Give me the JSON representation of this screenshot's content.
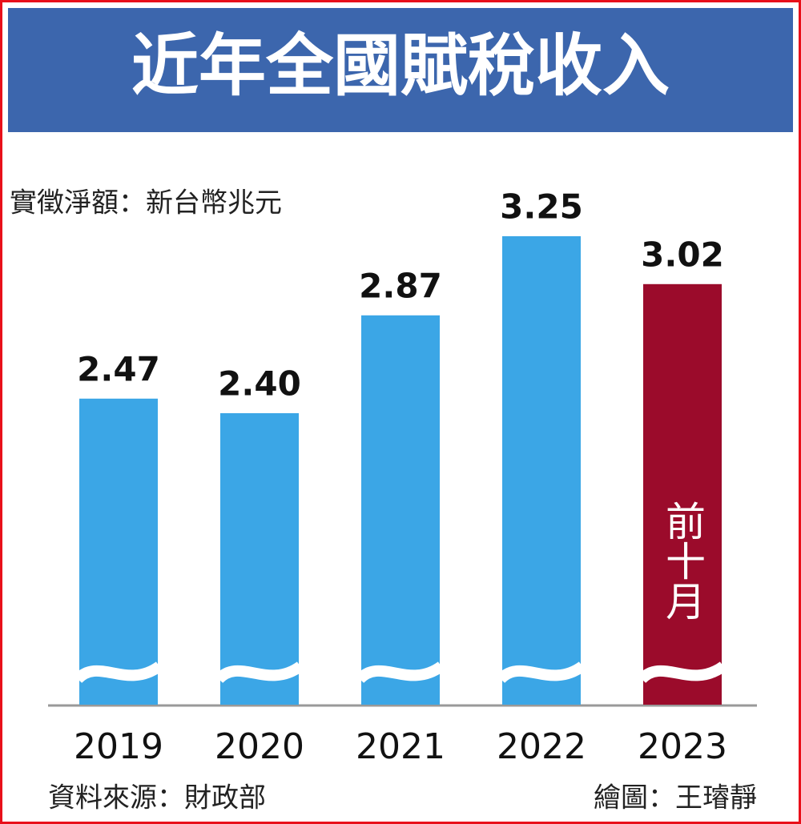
{
  "chart_data": {
    "type": "bar",
    "title": "近年全國賦稅收入",
    "subtitle": "實徵淨額：新台幣兆元",
    "categories": [
      "2019",
      "2020",
      "2021",
      "2022",
      "2023"
    ],
    "values": [
      2.47,
      2.4,
      2.87,
      3.25,
      3.02
    ],
    "value_labels": [
      "2.47",
      "2.40",
      "2.87",
      "3.25",
      "3.02"
    ],
    "colors": [
      "#3ba6e6",
      "#3ba6e6",
      "#3ba6e6",
      "#3ba6e6",
      "#9b0b2b"
    ],
    "annotation": "前十月",
    "ylim": [
      1.0,
      3.6
    ],
    "source": "資料來源：財政部",
    "credit": "繪圖：王璿靜"
  }
}
